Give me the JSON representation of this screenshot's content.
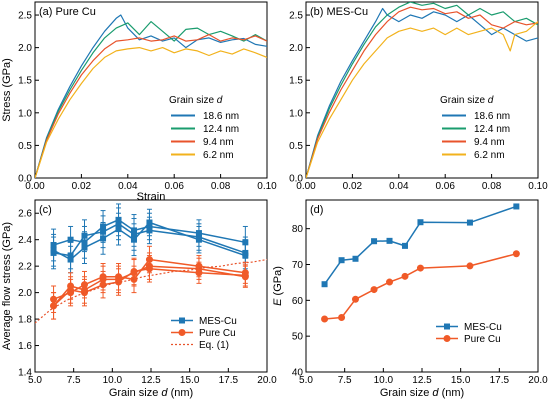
{
  "chart_data": [
    {
      "type": "line",
      "panel": "a",
      "title": "(a) Pure Cu",
      "xlabel": "Strain",
      "ylabel": "Stress (GPa)",
      "xlim": [
        0,
        0.1
      ],
      "ylim": [
        0,
        2.7
      ],
      "xticks": [
        "0.00",
        "0.02",
        "0.04",
        "0.06",
        "0.08",
        "0.10"
      ],
      "yticks": [
        "0.0",
        "0.5",
        "1.0",
        "1.5",
        "2.0",
        "2.5"
      ],
      "legend_title": "Grain size d",
      "legend_position": "lower-right",
      "series": [
        {
          "name": "18.6 nm",
          "color": "#1f77b4",
          "x": [
            0,
            0.005,
            0.01,
            0.015,
            0.02,
            0.025,
            0.03,
            0.035,
            0.037,
            0.04,
            0.045,
            0.05,
            0.055,
            0.06,
            0.065,
            0.07,
            0.075,
            0.08,
            0.085,
            0.09,
            0.095,
            0.1
          ],
          "y": [
            0,
            0.62,
            1.05,
            1.4,
            1.72,
            2.0,
            2.25,
            2.45,
            2.5,
            2.3,
            2.12,
            2.18,
            2.1,
            2.15,
            2.0,
            2.12,
            2.15,
            2.08,
            2.12,
            2.14,
            2.05,
            2.02
          ]
        },
        {
          "name": "12.4 nm",
          "color": "#1a9c6e",
          "x": [
            0,
            0.005,
            0.01,
            0.015,
            0.02,
            0.025,
            0.03,
            0.035,
            0.04,
            0.045,
            0.05,
            0.055,
            0.06,
            0.065,
            0.07,
            0.075,
            0.08,
            0.085,
            0.09,
            0.095,
            0.1
          ],
          "y": [
            0,
            0.6,
            1.02,
            1.35,
            1.65,
            1.92,
            2.15,
            2.3,
            2.38,
            2.2,
            2.4,
            2.25,
            2.1,
            2.28,
            2.3,
            2.2,
            2.25,
            2.18,
            2.1,
            2.2,
            2.1
          ]
        },
        {
          "name": "9.4 nm",
          "color": "#e8532b",
          "x": [
            0,
            0.005,
            0.01,
            0.015,
            0.02,
            0.025,
            0.03,
            0.035,
            0.04,
            0.045,
            0.05,
            0.055,
            0.06,
            0.065,
            0.07,
            0.075,
            0.08,
            0.085,
            0.09,
            0.095,
            0.1
          ],
          "y": [
            0,
            0.58,
            0.98,
            1.3,
            1.58,
            1.8,
            1.98,
            2.1,
            2.12,
            2.15,
            2.1,
            2.12,
            2.18,
            2.1,
            2.12,
            2.2,
            2.1,
            2.15,
            2.12,
            2.18,
            2.1
          ]
        },
        {
          "name": "6.2 nm",
          "color": "#f2b21c",
          "x": [
            0,
            0.005,
            0.01,
            0.015,
            0.02,
            0.025,
            0.03,
            0.035,
            0.04,
            0.045,
            0.05,
            0.055,
            0.06,
            0.065,
            0.07,
            0.075,
            0.08,
            0.085,
            0.09,
            0.095,
            0.1
          ],
          "y": [
            0,
            0.55,
            0.9,
            1.2,
            1.45,
            1.68,
            1.85,
            1.95,
            1.98,
            2.0,
            1.95,
            2.0,
            1.92,
            1.98,
            1.95,
            1.88,
            1.95,
            1.9,
            1.98,
            1.92,
            1.85
          ]
        }
      ]
    },
    {
      "type": "line",
      "panel": "b",
      "title": "(b) MES-Cu",
      "xlabel": "",
      "ylabel": "",
      "xlim": [
        0,
        0.1
      ],
      "ylim": [
        0,
        2.7
      ],
      "xticks": [
        "0.00",
        "0.02",
        "0.04",
        "0.06",
        "0.08",
        "0.10"
      ],
      "yticks": [
        "0.0",
        "0.5",
        "1.0",
        "1.5",
        "2.0",
        "2.5"
      ],
      "legend_title": "Grain size d",
      "legend_position": "lower-right",
      "series": [
        {
          "name": "18.6 nm",
          "color": "#1f77b4",
          "x": [
            0,
            0.005,
            0.01,
            0.015,
            0.02,
            0.025,
            0.03,
            0.033,
            0.035,
            0.04,
            0.045,
            0.05,
            0.055,
            0.06,
            0.065,
            0.07,
            0.075,
            0.08,
            0.085,
            0.09,
            0.095,
            0.1
          ],
          "y": [
            0,
            0.65,
            1.1,
            1.48,
            1.8,
            2.1,
            2.4,
            2.6,
            2.5,
            2.4,
            2.5,
            2.45,
            2.55,
            2.5,
            2.4,
            2.5,
            2.35,
            2.2,
            2.3,
            2.2,
            2.1,
            2.15
          ]
        },
        {
          "name": "12.4 nm",
          "color": "#1a9c6e",
          "x": [
            0,
            0.005,
            0.01,
            0.015,
            0.02,
            0.025,
            0.03,
            0.035,
            0.04,
            0.045,
            0.05,
            0.055,
            0.06,
            0.065,
            0.07,
            0.075,
            0.08,
            0.085,
            0.09,
            0.095,
            0.1
          ],
          "y": [
            0,
            0.62,
            1.06,
            1.42,
            1.75,
            2.05,
            2.32,
            2.5,
            2.62,
            2.7,
            2.65,
            2.68,
            2.6,
            2.65,
            2.5,
            2.6,
            2.5,
            2.55,
            2.4,
            2.45,
            2.35
          ]
        },
        {
          "name": "9.4 nm",
          "color": "#e8532b",
          "x": [
            0,
            0.005,
            0.01,
            0.015,
            0.02,
            0.025,
            0.03,
            0.035,
            0.04,
            0.045,
            0.05,
            0.055,
            0.06,
            0.065,
            0.07,
            0.075,
            0.08,
            0.085,
            0.09,
            0.095,
            0.1
          ],
          "y": [
            0,
            0.6,
            1.0,
            1.35,
            1.65,
            1.95,
            2.2,
            2.4,
            2.55,
            2.62,
            2.58,
            2.6,
            2.52,
            2.55,
            2.45,
            2.5,
            2.35,
            2.3,
            2.4,
            2.35,
            2.38
          ]
        },
        {
          "name": "6.2 nm",
          "color": "#f2b21c",
          "x": [
            0,
            0.005,
            0.01,
            0.015,
            0.02,
            0.025,
            0.03,
            0.035,
            0.04,
            0.045,
            0.05,
            0.055,
            0.06,
            0.065,
            0.07,
            0.075,
            0.08,
            0.085,
            0.088,
            0.09,
            0.095,
            0.1
          ],
          "y": [
            0,
            0.55,
            0.9,
            1.2,
            1.5,
            1.75,
            1.95,
            2.15,
            2.25,
            2.3,
            2.25,
            2.3,
            2.2,
            2.3,
            2.2,
            2.25,
            2.3,
            2.2,
            1.95,
            2.2,
            2.25,
            2.4
          ]
        }
      ]
    },
    {
      "type": "line",
      "panel": "c",
      "title": "(c)",
      "xlabel": "Grain size d (nm)",
      "ylabel": "Average flow stress (GPa)",
      "xlim": [
        5,
        20
      ],
      "ylim": [
        1.4,
        2.7
      ],
      "xticks": [
        "5.0",
        "7.5",
        "10.0",
        "12.5",
        "15.0",
        "17.5",
        "20.0"
      ],
      "yticks": [
        "1.4",
        "1.6",
        "1.8",
        "2.0",
        "2.2",
        "2.4",
        "2.6"
      ],
      "legend_position": "lower-right",
      "series": [
        {
          "name": "MES-Cu",
          "color": "#1f77b4",
          "marker": "square",
          "sets": [
            {
              "x": [
                6.2,
                7.3,
                8.2,
                9.4,
                10.4,
                11.4,
                12.4,
                15.6,
                18.6
              ],
              "y": [
                2.3,
                2.28,
                2.43,
                2.46,
                2.52,
                2.44,
                2.47,
                2.42,
                2.3
              ],
              "err": [
                0.12,
                0.1,
                0.12,
                0.12,
                0.12,
                0.12,
                0.1,
                0.1,
                0.12
              ]
            },
            {
              "x": [
                6.2,
                7.3,
                8.2,
                9.4,
                10.4,
                11.4,
                12.4,
                15.6,
                18.6
              ],
              "y": [
                2.36,
                2.4,
                2.38,
                2.5,
                2.55,
                2.47,
                2.5,
                2.45,
                2.38
              ],
              "err": [
                0.12,
                0.1,
                0.12,
                0.12,
                0.12,
                0.12,
                0.1,
                0.1,
                0.12
              ]
            },
            {
              "x": [
                6.2,
                7.3,
                8.2,
                9.4,
                10.4,
                11.4,
                12.4,
                15.6,
                18.6
              ],
              "y": [
                2.32,
                2.25,
                2.34,
                2.41,
                2.48,
                2.4,
                2.53,
                2.4,
                2.28
              ],
              "err": [
                0.12,
                0.1,
                0.12,
                0.12,
                0.12,
                0.12,
                0.1,
                0.1,
                0.12
              ]
            }
          ]
        },
        {
          "name": "Pure Cu",
          "color": "#f05a28",
          "marker": "circle",
          "sets": [
            {
              "x": [
                6.2,
                7.3,
                8.2,
                9.4,
                10.4,
                11.4,
                12.4,
                15.6,
                18.6
              ],
              "y": [
                1.9,
                2.05,
                2.02,
                2.1,
                2.1,
                2.15,
                2.2,
                2.18,
                2.12
              ],
              "err": [
                0.1,
                0.1,
                0.1,
                0.1,
                0.1,
                0.1,
                0.1,
                0.08,
                0.08
              ]
            },
            {
              "x": [
                6.2,
                7.3,
                8.2,
                9.4,
                10.4,
                11.4,
                12.4,
                15.6,
                18.6
              ],
              "y": [
                1.95,
                2.0,
                2.06,
                2.12,
                2.12,
                2.1,
                2.25,
                2.2,
                2.15
              ],
              "err": [
                0.1,
                0.1,
                0.1,
                0.1,
                0.1,
                0.1,
                0.1,
                0.08,
                0.08
              ]
            },
            {
              "x": [
                6.2,
                7.3,
                8.2,
                9.4,
                10.4,
                11.4,
                12.4,
                15.6,
                18.6
              ],
              "y": [
                1.9,
                2.02,
                2.0,
                2.06,
                2.08,
                2.16,
                2.18,
                2.15,
                2.13
              ],
              "err": [
                0.1,
                0.1,
                0.1,
                0.1,
                0.1,
                0.1,
                0.1,
                0.08,
                0.08
              ]
            }
          ]
        },
        {
          "name": "Eq. (1)",
          "color": "#e8532b",
          "dashed": true,
          "x": [
            5,
            6,
            7,
            8,
            9,
            10,
            11,
            12,
            13,
            14,
            15,
            16,
            17,
            18,
            19,
            20
          ],
          "y": [
            1.77,
            1.87,
            1.94,
            1.99,
            2.03,
            2.07,
            2.09,
            2.12,
            2.14,
            2.16,
            2.17,
            2.19,
            2.2,
            2.22,
            2.23,
            2.25
          ]
        }
      ]
    },
    {
      "type": "line",
      "panel": "d",
      "title": "(d)",
      "xlabel": "Grain size d (nm)",
      "ylabel": "E (GPa)",
      "xlim": [
        5,
        20
      ],
      "ylim": [
        40,
        88
      ],
      "xticks": [
        "5.0",
        "7.5",
        "10.0",
        "12.5",
        "15.0",
        "17.5",
        "20.0"
      ],
      "yticks": [
        "40",
        "50",
        "60",
        "70",
        "80"
      ],
      "legend_position": "lower-right",
      "series": [
        {
          "name": "MES-Cu",
          "color": "#1f77b4",
          "marker": "square",
          "x": [
            6.2,
            7.3,
            8.2,
            9.4,
            10.4,
            11.4,
            12.4,
            15.6,
            18.6
          ],
          "y": [
            64.5,
            71.2,
            71.6,
            76.5,
            76.6,
            75.2,
            81.8,
            81.7,
            86.2
          ]
        },
        {
          "name": "Pure Cu",
          "color": "#f05a28",
          "marker": "circle",
          "x": [
            6.2,
            7.3,
            8.2,
            9.4,
            10.4,
            11.4,
            12.4,
            15.6,
            18.6
          ],
          "y": [
            54.8,
            55.2,
            60.3,
            63.0,
            65.1,
            66.7,
            69.0,
            69.6,
            73.0
          ]
        }
      ]
    }
  ]
}
